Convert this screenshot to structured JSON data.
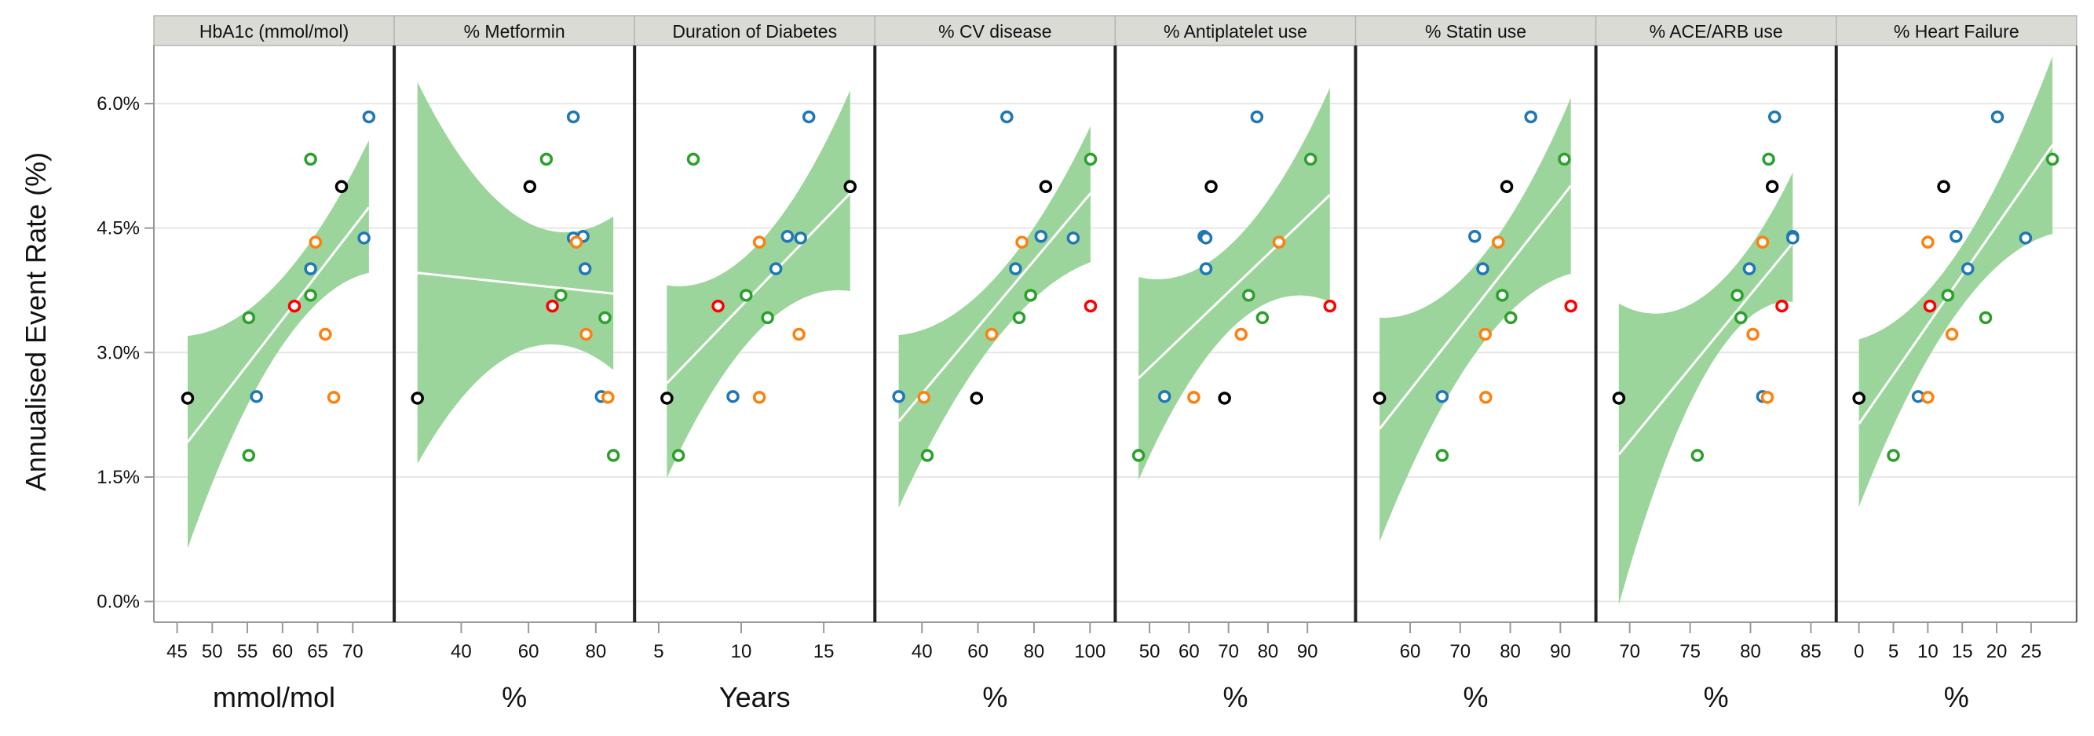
{
  "chart_data": {
    "type": "scatter",
    "ylabel": "Annualised Event Rate (%)",
    "ylim": [
      -0.25,
      6.7
    ],
    "yticks": [
      0,
      1.5,
      3,
      4.5,
      6
    ],
    "ytick_labels": [
      "0.0%",
      "1.5%",
      "3.0%",
      "4.5%",
      "6.0%"
    ],
    "grid": true,
    "colors": {
      "blue": "#1f77b4",
      "green": "#2ca02c",
      "black": "#000000",
      "red": "#ff0000",
      "orange": "#ff7f0e",
      "band": "#9bd59b",
      "fit": "#ffffff",
      "strip": "#d9dbd4"
    },
    "panels": [
      {
        "title": "HbA1c (mmol/mol)",
        "xlabel": "mmol/mol",
        "xlim": [
          41.7,
          75.9
        ],
        "xticks": [
          45,
          50,
          55,
          60,
          65,
          70
        ],
        "fit": [
          [
            46.5,
            1.92
          ],
          [
            72.3,
            4.75
          ]
        ],
        "band": [
          [
            46.5,
            0.64,
            3.2
          ],
          [
            60.5,
            3.15,
            3.95
          ],
          [
            72.3,
            3.96,
            5.56
          ]
        ]
      },
      {
        "title": "% Metformin",
        "xlabel": "%",
        "xlim": [
          20.1,
          91.5
        ],
        "xticks": [
          40,
          60,
          80
        ],
        "fit": [
          [
            27.0,
            3.96
          ],
          [
            85.2,
            3.71
          ]
        ],
        "band": [
          [
            27.0,
            1.66,
            6.26
          ],
          [
            69.8,
            3.09,
            4.45
          ],
          [
            85.2,
            2.79,
            4.64
          ]
        ]
      },
      {
        "title": "Duration of Diabetes",
        "xlabel": "Years",
        "xlim": [
          3.54,
          18.1
        ],
        "xticks": [
          5,
          10,
          15
        ],
        "fit": [
          [
            5.5,
            2.63
          ],
          [
            16.6,
            4.92
          ]
        ],
        "band": [
          [
            5.5,
            1.49,
            3.81
          ],
          [
            11.0,
            3.25,
            4.3
          ],
          [
            16.6,
            3.74,
            6.16
          ]
        ]
      },
      {
        "title": "% CV disease",
        "xlabel": "%",
        "xlim": [
          23.2,
          109
        ],
        "xticks": [
          40,
          60,
          80,
          100
        ],
        "fit": [
          [
            31.7,
            2.17
          ],
          [
            100.2,
            4.92
          ]
        ],
        "band": [
          [
            31.7,
            1.13,
            3.21
          ],
          [
            70.0,
            3.3,
            4.05
          ],
          [
            100.2,
            4.09,
            5.73
          ]
        ]
      },
      {
        "title": "% Antiplatelet use",
        "xlabel": "%",
        "xlim": [
          41.3,
          102.2
        ],
        "xticks": [
          50,
          60,
          70,
          80,
          90
        ],
        "fit": [
          [
            47.2,
            2.69
          ],
          [
            95.7,
            4.9
          ]
        ],
        "band": [
          [
            47.2,
            1.46,
            3.91
          ],
          [
            71.0,
            3.3,
            4.32
          ],
          [
            95.7,
            3.61,
            6.19
          ]
        ]
      },
      {
        "title": "% Statin use",
        "xlabel": "%",
        "xlim": [
          49.1,
          97.1
        ],
        "xticks": [
          60,
          70,
          80,
          90
        ],
        "fit": [
          [
            53.9,
            2.08
          ],
          [
            92.1,
            5.01
          ]
        ],
        "band": [
          [
            53.9,
            0.72,
            3.42
          ],
          [
            75.0,
            3.15,
            4.2
          ],
          [
            92.1,
            3.95,
            6.07
          ]
        ]
      },
      {
        "title": "% ACE/ARB use",
        "xlabel": "%",
        "xlim": [
          67.2,
          87.1
        ],
        "xticks": [
          70,
          75,
          80,
          85
        ],
        "fit": [
          [
            69.1,
            1.77
          ],
          [
            83.5,
            4.32
          ]
        ],
        "band": [
          [
            69.1,
            -0.04,
            3.59
          ],
          [
            79.0,
            3.3,
            4.09
          ],
          [
            83.5,
            3.61,
            5.17
          ]
        ]
      },
      {
        "title": "% Heart Failure",
        "xlabel": "%",
        "xlim": [
          -3.3,
          31.6
        ],
        "xticks": [
          0,
          5,
          10,
          15,
          20,
          25
        ],
        "fit": [
          [
            0.0,
            2.14
          ],
          [
            28.1,
            5.5
          ]
        ],
        "band": [
          [
            0.0,
            1.14,
            3.16
          ],
          [
            13.0,
            3.33,
            4.05
          ],
          [
            28.1,
            4.43,
            6.57
          ]
        ]
      }
    ],
    "studies": [
      {
        "color": "blue",
        "y": 5.84,
        "x": [
          72.3,
          73.3,
          14.1,
          70.3,
          77.2,
          84.1,
          82.0,
          20.1
        ]
      },
      {
        "color": "green",
        "y": 5.33,
        "x": [
          64.0,
          65.3,
          7.1,
          100.2,
          90.8,
          90.8,
          81.5,
          28.1
        ]
      },
      {
        "color": "black",
        "y": 5.0,
        "x": [
          68.4,
          60.4,
          16.6,
          84.2,
          65.6,
          79.3,
          81.8,
          12.3
        ]
      },
      {
        "color": "blue",
        "y": 4.4,
        "x": [
          null,
          76.2,
          12.8,
          82.5,
          63.8,
          72.9,
          83.5,
          14.1
        ]
      },
      {
        "color": "blue",
        "y": 4.38,
        "x": [
          71.6,
          73.3,
          13.6,
          94.0,
          64.3,
          null,
          83.5,
          24.2
        ]
      },
      {
        "color": "orange",
        "y": 4.33,
        "x": [
          64.7,
          74.2,
          11.1,
          75.7,
          82.8,
          77.6,
          81.0,
          10.0
        ]
      },
      {
        "color": "blue",
        "y": 4.01,
        "x": [
          64.0,
          76.8,
          12.1,
          73.4,
          64.3,
          74.5,
          79.9,
          15.8
        ]
      },
      {
        "color": "green",
        "y": 3.69,
        "x": [
          64.0,
          69.6,
          10.3,
          78.8,
          75.1,
          78.4,
          78.9,
          12.9
        ]
      },
      {
        "color": "red",
        "y": 3.56,
        "x": [
          61.7,
          67.1,
          8.6,
          100.2,
          95.7,
          92.1,
          82.6,
          10.3
        ]
      },
      {
        "color": "green",
        "y": 3.42,
        "x": [
          55.2,
          82.7,
          11.6,
          74.7,
          78.6,
          80.1,
          79.2,
          18.4
        ]
      },
      {
        "color": "orange",
        "y": 3.22,
        "x": [
          66.1,
          77.1,
          13.5,
          64.9,
          73.2,
          75.0,
          80.2,
          13.5
        ]
      },
      {
        "color": "blue",
        "y": 2.47,
        "x": [
          56.3,
          81.6,
          9.5,
          31.7,
          53.8,
          66.4,
          81.0,
          8.6
        ]
      },
      {
        "color": "orange",
        "y": 2.46,
        "x": [
          67.3,
          83.6,
          11.1,
          40.7,
          61.2,
          75.1,
          81.4,
          10.0
        ]
      },
      {
        "color": "black",
        "y": 2.45,
        "x": [
          46.5,
          27.0,
          5.5,
          59.5,
          69.0,
          53.9,
          69.1,
          0.0
        ]
      },
      {
        "color": "green",
        "y": 1.76,
        "x": [
          55.2,
          85.2,
          6.2,
          41.9,
          47.2,
          66.4,
          75.6,
          5.0
        ]
      }
    ]
  }
}
